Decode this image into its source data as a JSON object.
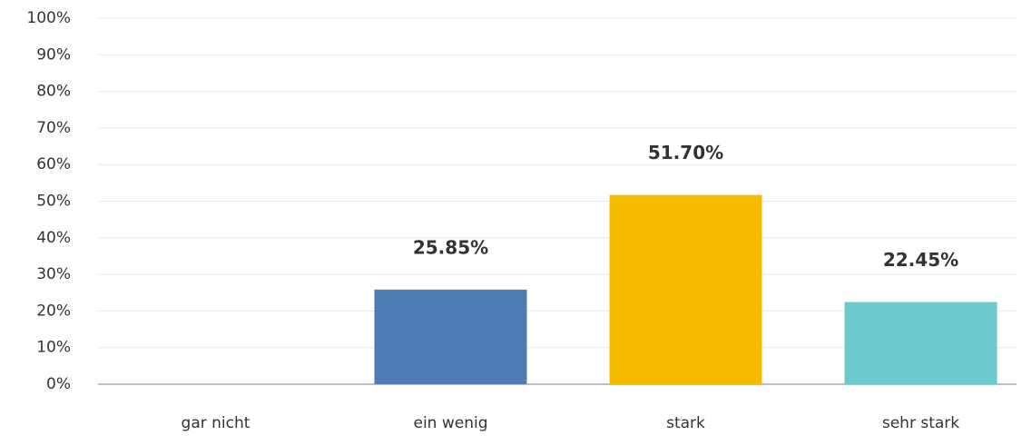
{
  "chart_data": {
    "type": "bar",
    "categories": [
      "gar nicht",
      "ein wenig",
      "stark",
      "sehr stark"
    ],
    "values": [
      0,
      25.85,
      51.7,
      22.45
    ],
    "value_labels": [
      null,
      "25.85%",
      "51.70%",
      "22.45%"
    ],
    "colors": [
      null,
      "#4e7ab5",
      "#f5bc00",
      "#6cc9cd"
    ],
    "ylim": [
      0,
      100
    ],
    "yticks": [
      {
        "value": 0,
        "label": "0%"
      },
      {
        "value": 10,
        "label": "10%"
      },
      {
        "value": 20,
        "label": "20%"
      },
      {
        "value": 30,
        "label": "30%"
      },
      {
        "value": 40,
        "label": "40%"
      },
      {
        "value": 50,
        "label": "50%"
      },
      {
        "value": 60,
        "label": "60%"
      },
      {
        "value": 70,
        "label": "70%"
      },
      {
        "value": 80,
        "label": "80%"
      },
      {
        "value": 90,
        "label": "90%"
      },
      {
        "value": 100,
        "label": "100%"
      }
    ],
    "grid": true
  }
}
